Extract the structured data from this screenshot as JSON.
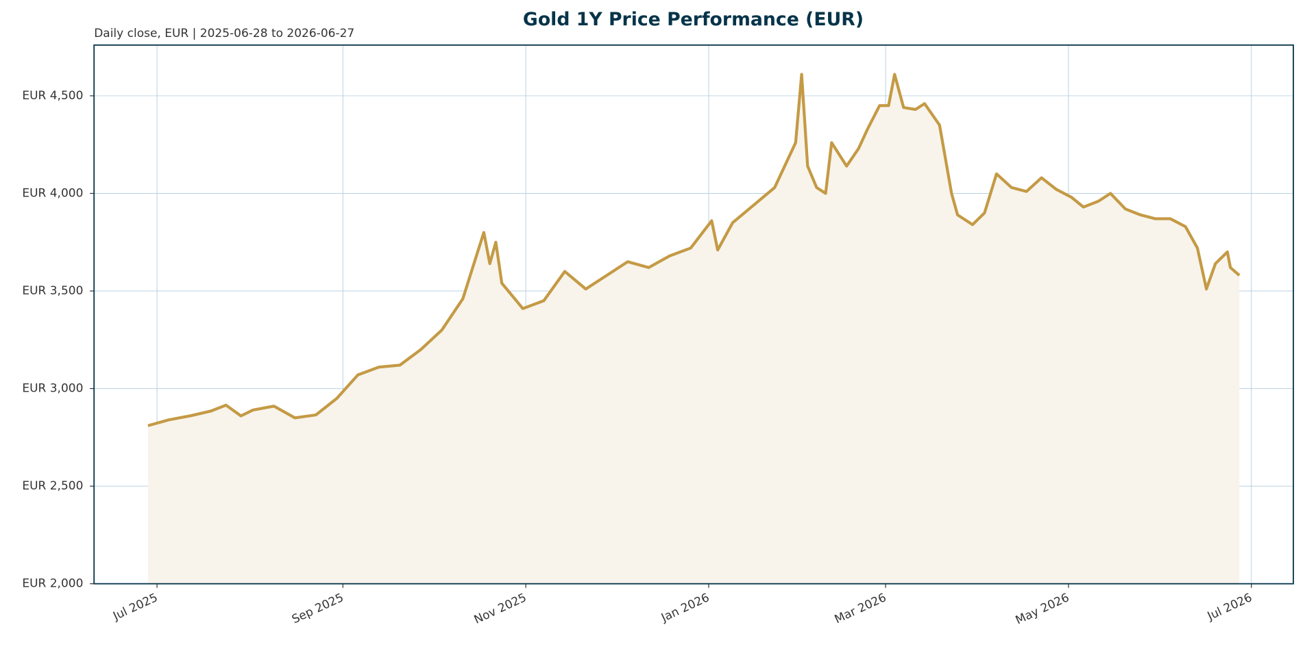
{
  "chart_data": {
    "type": "line",
    "title": "Gold 1Y Price Performance (EUR)",
    "subtitle": "Daily close, EUR | 2025-06-28 to 2026-06-27",
    "x": [
      "2025-06-28",
      "2025-07-05",
      "2025-07-12",
      "2025-07-19",
      "2025-07-24",
      "2025-07-29",
      "2025-08-02",
      "2025-08-09",
      "2025-08-16",
      "2025-08-23",
      "2025-08-30",
      "2025-09-06",
      "2025-09-13",
      "2025-09-20",
      "2025-09-27",
      "2025-10-04",
      "2025-10-11",
      "2025-10-18",
      "2025-10-20",
      "2025-10-22",
      "2025-10-24",
      "2025-10-31",
      "2025-11-07",
      "2025-11-14",
      "2025-11-21",
      "2025-11-28",
      "2025-12-05",
      "2025-12-12",
      "2025-12-19",
      "2025-12-26",
      "2026-01-02",
      "2026-01-04",
      "2026-01-09",
      "2026-01-16",
      "2026-01-23",
      "2026-01-30",
      "2026-02-01",
      "2026-02-03",
      "2026-02-06",
      "2026-02-09",
      "2026-02-11",
      "2026-02-16",
      "2026-02-20",
      "2026-02-23",
      "2026-02-27",
      "2026-03-02",
      "2026-03-04",
      "2026-03-07",
      "2026-03-11",
      "2026-03-14",
      "2026-03-19",
      "2026-03-23",
      "2026-03-25",
      "2026-03-30",
      "2026-04-03",
      "2026-04-07",
      "2026-04-12",
      "2026-04-17",
      "2026-04-22",
      "2026-04-27",
      "2026-05-02",
      "2026-05-06",
      "2026-05-11",
      "2026-05-15",
      "2026-05-20",
      "2026-05-25",
      "2026-05-30",
      "2026-06-04",
      "2026-06-09",
      "2026-06-13",
      "2026-06-16",
      "2026-06-19",
      "2026-06-23",
      "2026-06-24",
      "2026-06-27"
    ],
    "values": [
      2810,
      2840,
      2860,
      2885,
      2915,
      2860,
      2890,
      2910,
      2850,
      2865,
      2950,
      3070,
      3110,
      3120,
      3200,
      3300,
      3460,
      3800,
      3640,
      3750,
      3540,
      3410,
      3450,
      3600,
      3510,
      3580,
      3650,
      3620,
      3680,
      3720,
      3860,
      3710,
      3850,
      3940,
      4030,
      4260,
      4610,
      4140,
      4030,
      4000,
      4260,
      4140,
      4230,
      4330,
      4450,
      4450,
      4610,
      4440,
      4430,
      4460,
      4350,
      4000,
      3890,
      3840,
      3900,
      4100,
      4030,
      4010,
      4080,
      4020,
      3980,
      3930,
      3960,
      4000,
      3920,
      3890,
      3870,
      3870,
      3830,
      3720,
      3510,
      3640,
      3700,
      3620,
      3580
    ],
    "color": "#c49a45",
    "fill_color": "#f8f4ec",
    "grid": true,
    "xlim": [
      "2025-06-10",
      "2026-07-15"
    ],
    "xticks": [
      {
        "value": "2025-07-01",
        "label": "Jul 2025"
      },
      {
        "value": "2025-09-01",
        "label": "Sep 2025"
      },
      {
        "value": "2025-11-01",
        "label": "Nov 2025"
      },
      {
        "value": "2026-01-01",
        "label": "Jan 2026"
      },
      {
        "value": "2026-03-01",
        "label": "Mar 2026"
      },
      {
        "value": "2026-05-01",
        "label": "May 2026"
      },
      {
        "value": "2026-07-01",
        "label": "Jul 2026"
      }
    ],
    "ylim": [
      2000,
      4760
    ],
    "yticks": [
      {
        "value": 2000,
        "label": "EUR 2,000"
      },
      {
        "value": 2500,
        "label": "EUR 2,500"
      },
      {
        "value": 3000,
        "label": "EUR 3,000"
      },
      {
        "value": 3500,
        "label": "EUR 3,500"
      },
      {
        "value": 4000,
        "label": "EUR 4,000"
      },
      {
        "value": 4500,
        "label": "EUR 4,500"
      }
    ]
  }
}
